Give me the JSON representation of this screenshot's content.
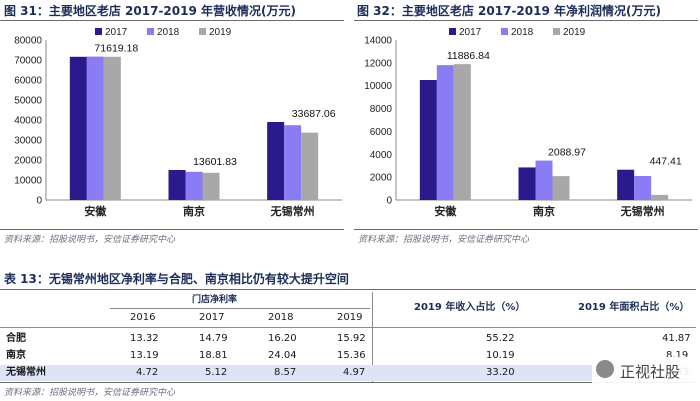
{
  "figures": {
    "fig31": {
      "title": "图 31：主要地区老店 2017-2019 年营收情况(万元)",
      "source": "资料来源：招股说明书，安信证券研究中心"
    },
    "fig32": {
      "title": "图 32：主要地区老店 2017-2019 年净利润情况(万元)",
      "source": "资料来源：招股说明书，安信证券研究中心"
    }
  },
  "colors": {
    "s2017": "#2a1a8c",
    "s2018": "#8a7cf5",
    "s2019": "#a8a8a8"
  },
  "chart_data": [
    {
      "type": "bar",
      "title": "图 31：主要地区老店 2017-2019 年营收情况(万元)",
      "categories": [
        "安徽",
        "南京",
        "无锡常州"
      ],
      "series": [
        {
          "name": "2017",
          "values": [
            71600,
            15000,
            39000
          ]
        },
        {
          "name": "2018",
          "values": [
            71700,
            14100,
            37400
          ]
        },
        {
          "name": "2019",
          "values": [
            71619.18,
            13601.83,
            33687.06
          ]
        }
      ],
      "data_labels": [
        "71619.18",
        "13601.83",
        "33687.06"
      ],
      "ylim": [
        0,
        80000
      ],
      "yticks": [
        0,
        10000,
        20000,
        30000,
        40000,
        50000,
        60000,
        70000,
        80000
      ],
      "legend": "top-center",
      "grid": false
    },
    {
      "type": "bar",
      "title": "图 32：主要地区老店 2017-2019 年净利润情况(万元)",
      "categories": [
        "安徽",
        "南京",
        "无锡常州"
      ],
      "series": [
        {
          "name": "2017",
          "values": [
            10500,
            2850,
            2650
          ]
        },
        {
          "name": "2018",
          "values": [
            11800,
            3450,
            2100
          ]
        },
        {
          "name": "2019",
          "values": [
            11886.84,
            2088.97,
            447.41
          ]
        }
      ],
      "data_labels": [
        "11886.84",
        "2088.97",
        "447.41"
      ],
      "ylim": [
        0,
        14000
      ],
      "yticks": [
        0,
        2000,
        4000,
        6000,
        8000,
        10000,
        12000,
        14000
      ],
      "legend": "top-center",
      "grid": false
    }
  ],
  "table": {
    "title": "表 13：无锡常州地区净利率与合肥、南京相比仍有较大提升空间",
    "group_header": "门店净利率",
    "years": [
      "2016",
      "2017",
      "2018",
      "2019"
    ],
    "col_income": "2019 年收入占比（%）",
    "col_area": "2019 年面积占比（%）",
    "rows": [
      {
        "name": "合肥",
        "values": [
          "13.32",
          "14.79",
          "16.20",
          "15.92"
        ],
        "income": "55.22",
        "area": "41.87"
      },
      {
        "name": "南京",
        "values": [
          "13.19",
          "18.81",
          "24.04",
          "15.36"
        ],
        "income": "10.19",
        "area": "8.19"
      },
      {
        "name": "无锡常州",
        "values": [
          "4.72",
          "5.12",
          "8.57",
          "4.97"
        ],
        "income": "33.20",
        "area": "33"
      }
    ],
    "source": "资料来源：招股说明书，安信证券研究中心"
  },
  "watermark": {
    "text": "正视社股"
  }
}
